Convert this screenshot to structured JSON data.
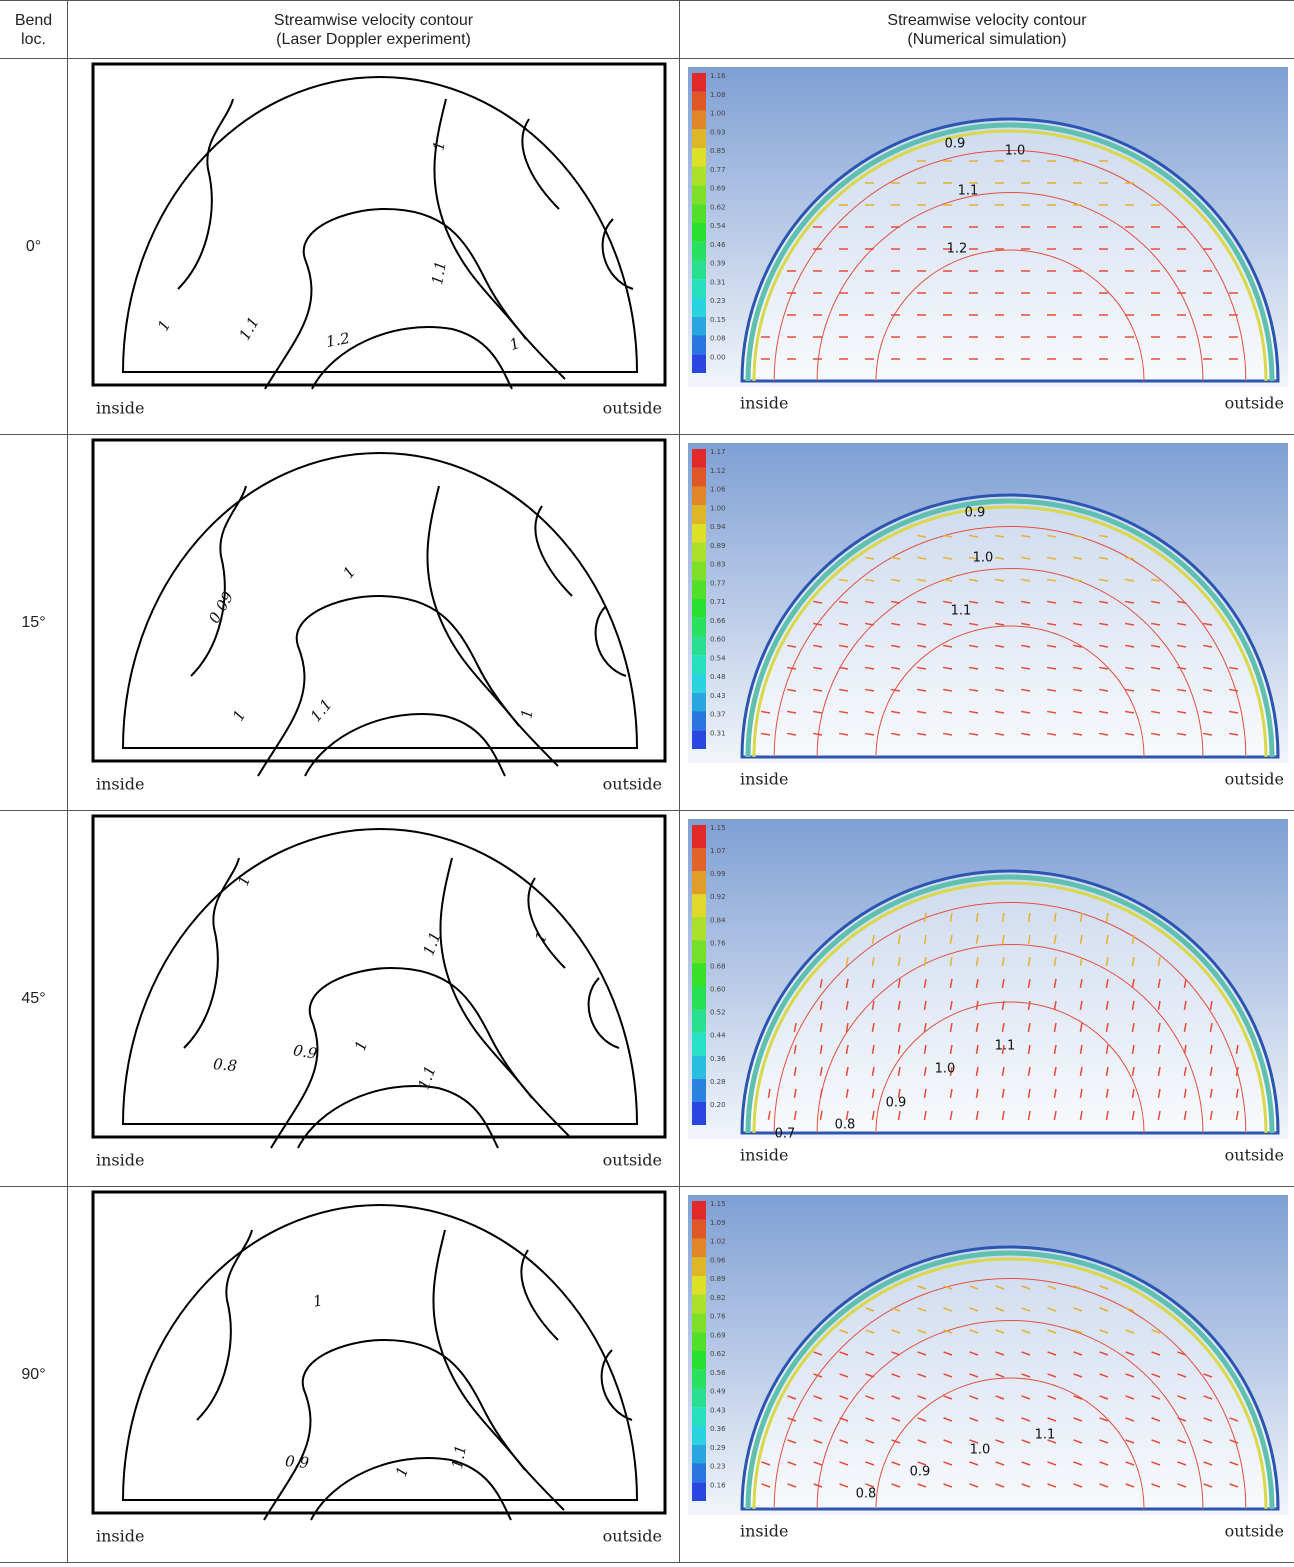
{
  "header": {
    "col1": "Bend loc.",
    "col2_title": "Streamwise velocity contour",
    "col2_subtitle": "(Laser Doppler experiment)",
    "col3_title": "Streamwise velocity contour",
    "col3_subtitle": "(Numerical simulation)"
  },
  "rows": [
    {
      "bend": "0°",
      "experiment": {
        "labels": [
          "1",
          "1.1",
          "1",
          "1.1",
          "1.2",
          "1"
        ],
        "inside": "inside",
        "outside": "outside"
      },
      "simulation": {
        "legend": [
          "1.16",
          "1.08",
          "1.00",
          "0.93",
          "0.85",
          "0.77",
          "0.69",
          "0.62",
          "0.54",
          "0.46",
          "0.39",
          "0.31",
          "0.23",
          "0.15",
          "0.08",
          "0.00"
        ],
        "labels": [
          "0.9",
          "1.0",
          "1.1",
          "1.2"
        ],
        "inside": "inside",
        "outside": "outside"
      }
    },
    {
      "bend": "15°",
      "experiment": {
        "labels": [
          "0.09",
          "1",
          "1",
          "1.1",
          "1"
        ],
        "inside": "inside",
        "outside": "outside"
      },
      "simulation": {
        "legend": [
          "1.17",
          "1.12",
          "1.06",
          "1.00",
          "0.94",
          "0.89",
          "0.83",
          "0.77",
          "0.71",
          "0.66",
          "0.60",
          "0.54",
          "0.48",
          "0.43",
          "0.37",
          "0.31"
        ],
        "labels": [
          "0.9",
          "1.0",
          "1.1"
        ],
        "inside": "inside",
        "outside": "outside"
      }
    },
    {
      "bend": "45°",
      "experiment": {
        "labels": [
          "1",
          "1.1",
          "1",
          "0.8",
          "0.9",
          "1",
          "1.1"
        ],
        "inside": "inside",
        "outside": "outside"
      },
      "simulation": {
        "legend": [
          "1.15",
          "1.07",
          "0.99",
          "0.92",
          "0.84",
          "0.76",
          "0.68",
          "0.60",
          "0.52",
          "0.44",
          "0.36",
          "0.28",
          "0.20"
        ],
        "labels": [
          "1.1",
          "1.0",
          "0.9",
          "0.8",
          "0.7"
        ],
        "inside": "inside",
        "outside": "outside"
      }
    },
    {
      "bend": "90°",
      "experiment": {
        "labels": [
          "1",
          "0.9",
          "1",
          "1.1"
        ],
        "inside": "inside",
        "outside": "outside"
      },
      "simulation": {
        "legend": [
          "1.15",
          "1.09",
          "1.02",
          "0.96",
          "0.89",
          "0.82",
          "0.76",
          "0.69",
          "0.62",
          "0.56",
          "0.49",
          "0.43",
          "0.36",
          "0.29",
          "0.23",
          "0.16"
        ],
        "labels": [
          "1.1",
          "1.0",
          "0.9",
          "0.8"
        ],
        "inside": "inside",
        "outside": "outside"
      }
    }
  ]
}
